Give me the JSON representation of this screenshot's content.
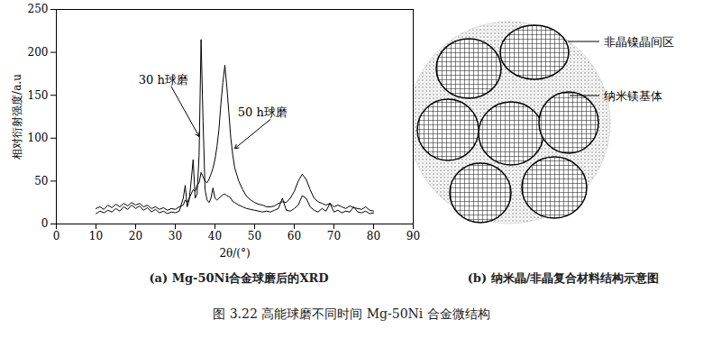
{
  "caption": "图 3.22   高能球磨不同时间 Mg-50Ni 合金微结构",
  "chart_data": {
    "type": "line",
    "title": "(a) Mg-50Ni合金球磨后的XRD",
    "x_label": "2θ/(°)",
    "y_label": "相对衍射强度/a.u",
    "xlim": [
      0,
      90
    ],
    "xticks": [
      0,
      10,
      20,
      30,
      40,
      50,
      60,
      70,
      80,
      90
    ],
    "ylim": [
      0,
      250
    ],
    "yticks": [
      0,
      50,
      100,
      150,
      200,
      250
    ],
    "grid": false,
    "x": [
      10,
      11,
      12,
      13,
      14,
      15,
      16,
      17,
      18,
      19,
      20,
      21,
      22,
      23,
      24,
      25,
      26,
      27,
      28,
      29,
      30,
      31,
      32,
      32.5,
      33,
      33.5,
      34,
      34.5,
      35,
      35.5,
      36,
      36.5,
      37,
      37.5,
      38,
      38.5,
      39,
      39.5,
      40,
      40.5,
      41,
      41.5,
      42,
      42.5,
      43,
      43.5,
      44,
      44.5,
      45,
      46,
      47,
      48,
      49,
      50,
      51,
      52,
      53,
      54,
      55,
      56,
      57,
      58,
      59,
      60,
      61,
      62,
      63,
      64,
      65,
      66,
      67,
      68,
      69,
      70,
      71,
      72,
      73,
      74,
      75,
      76,
      77,
      78,
      79,
      80
    ],
    "series": [
      {
        "name": "30 h球磨",
        "color": "#000000",
        "line_style": "solid",
        "values": [
          12,
          15,
          13,
          16,
          14,
          18,
          15,
          20,
          17,
          22,
          18,
          21,
          16,
          19,
          14,
          17,
          13,
          15,
          12,
          14,
          13,
          15,
          30,
          45,
          20,
          28,
          50,
          75,
          30,
          35,
          80,
          215,
          120,
          40,
          28,
          25,
          30,
          42,
          30,
          28,
          30,
          32,
          34,
          35,
          33,
          32,
          30,
          26,
          25,
          22,
          20,
          18,
          17,
          16,
          15,
          14,
          15,
          14,
          16,
          18,
          30,
          16,
          15,
          18,
          22,
          33,
          30,
          20,
          16,
          14,
          18,
          15,
          24,
          14,
          16,
          13,
          15,
          14,
          20,
          14,
          13,
          15,
          12,
          13
        ]
      },
      {
        "name": "50 h球磨",
        "color": "#000000",
        "line_style": "solid",
        "values": [
          18,
          20,
          17,
          22,
          19,
          23,
          20,
          24,
          21,
          25,
          22,
          24,
          20,
          22,
          18,
          20,
          17,
          19,
          16,
          18,
          17,
          20,
          22,
          28,
          25,
          30,
          35,
          40,
          38,
          45,
          48,
          60,
          55,
          50,
          48,
          52,
          58,
          65,
          75,
          90,
          110,
          140,
          165,
          185,
          160,
          130,
          100,
          80,
          65,
          50,
          40,
          32,
          28,
          25,
          23,
          22,
          20,
          20,
          21,
          24,
          26,
          25,
          30,
          38,
          50,
          58,
          52,
          40,
          30,
          26,
          24,
          22,
          24,
          20,
          22,
          20,
          18,
          21,
          19,
          18,
          17,
          20,
          16,
          15
        ]
      }
    ],
    "annotations": [
      {
        "text": "30 h球磨",
        "x": 27,
        "y": 168,
        "arrow_to": [
          36,
          102
        ]
      },
      {
        "text": "50 h球磨",
        "x": 52,
        "y": 130,
        "arrow_to": [
          45,
          88
        ]
      }
    ]
  },
  "diagram": {
    "title": "(b) 纳米晶/非晶复合材料结构示意图",
    "labels": [
      "非晶镍晶间区",
      "纳米镁基体"
    ]
  }
}
